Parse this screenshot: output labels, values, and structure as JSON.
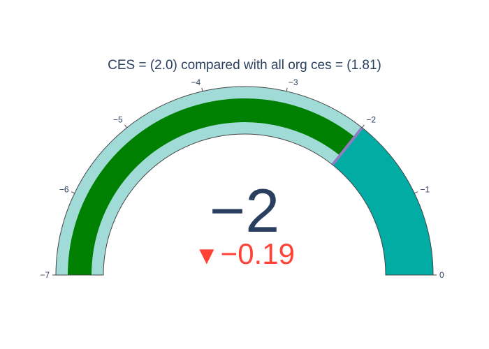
{
  "chart_data": {
    "type": "gauge",
    "title": "CES = (2.0) compared with all org ces = (1.81)",
    "value": -2,
    "value_label": "−2",
    "reference": -1.81,
    "delta": -0.19,
    "delta_label": "−0.19",
    "delta_direction": "decreasing",
    "delta_icon": "down-triangle-icon",
    "axis_range": [
      -7,
      0
    ],
    "ticks": [
      -7,
      -6,
      -5,
      -4,
      -3,
      -2,
      -1,
      0
    ],
    "tick_labels": [
      "−7",
      "−6",
      "−5",
      "−4",
      "−3",
      "−2",
      "−1",
      "0"
    ],
    "steps": [
      {
        "range": [
          -7,
          -2
        ],
        "color": "#a1dbd7"
      },
      {
        "range": [
          -2,
          0
        ],
        "color": "#00aca4"
      }
    ],
    "threshold": {
      "value": -2,
      "color": "#8e7cc3"
    }
  },
  "colors": {
    "bar": "#008000",
    "gauge_border": "#444444",
    "text": "#2a3f5f",
    "delta_decreasing": "#ff4136",
    "background": "#ffffff"
  }
}
